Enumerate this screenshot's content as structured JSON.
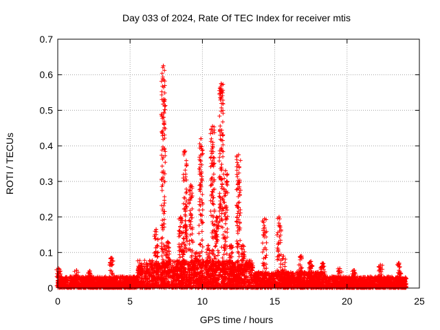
{
  "chart_data": {
    "type": "scatter",
    "title": "Day 033 of 2024, Rate Of TEC Index for receiver mtis",
    "xlabel": "GPS time / hours",
    "ylabel": "ROTI / TECUs",
    "xlim": [
      0,
      25
    ],
    "ylim": [
      0,
      0.7
    ],
    "xticks": [
      0,
      5,
      10,
      15,
      20,
      25
    ],
    "yticks": [
      0,
      0.1,
      0.2,
      0.3,
      0.4,
      0.5,
      0.6,
      0.7
    ],
    "grid": true,
    "marker": "+",
    "color": "#ff0000",
    "series": [
      {
        "name": "ROTI",
        "peaks": [
          {
            "x": 0.05,
            "y": 0.055
          },
          {
            "x": 1.3,
            "y": 0.05
          },
          {
            "x": 2.2,
            "y": 0.048
          },
          {
            "x": 3.7,
            "y": 0.085
          },
          {
            "x": 5.7,
            "y": 0.065
          },
          {
            "x": 6.8,
            "y": 0.165
          },
          {
            "x": 7.3,
            "y": 0.625
          },
          {
            "x": 7.6,
            "y": 0.13
          },
          {
            "x": 8.5,
            "y": 0.2
          },
          {
            "x": 8.8,
            "y": 0.385
          },
          {
            "x": 9.2,
            "y": 0.29
          },
          {
            "x": 9.6,
            "y": 0.1
          },
          {
            "x": 9.9,
            "y": 0.42
          },
          {
            "x": 10.4,
            "y": 0.12
          },
          {
            "x": 10.7,
            "y": 0.455
          },
          {
            "x": 11.0,
            "y": 0.2
          },
          {
            "x": 11.3,
            "y": 0.575
          },
          {
            "x": 11.6,
            "y": 0.33
          },
          {
            "x": 12.0,
            "y": 0.12
          },
          {
            "x": 12.5,
            "y": 0.375
          },
          {
            "x": 12.8,
            "y": 0.12
          },
          {
            "x": 14.3,
            "y": 0.195
          },
          {
            "x": 15.3,
            "y": 0.2
          },
          {
            "x": 15.6,
            "y": 0.09
          },
          {
            "x": 16.8,
            "y": 0.09
          },
          {
            "x": 17.5,
            "y": 0.075
          },
          {
            "x": 18.3,
            "y": 0.07
          },
          {
            "x": 19.5,
            "y": 0.055
          },
          {
            "x": 20.5,
            "y": 0.05
          },
          {
            "x": 22.3,
            "y": 0.065
          },
          {
            "x": 23.6,
            "y": 0.07
          },
          {
            "x": 24.0,
            "y": 0.025
          }
        ],
        "baseline": [
          {
            "x0": 0.0,
            "x1": 5.5,
            "y": 0.025
          },
          {
            "x0": 5.5,
            "x1": 13.5,
            "y": 0.06
          },
          {
            "x0": 13.5,
            "x1": 18.5,
            "y": 0.035
          },
          {
            "x0": 18.5,
            "x1": 24.1,
            "y": 0.025
          }
        ]
      }
    ]
  }
}
